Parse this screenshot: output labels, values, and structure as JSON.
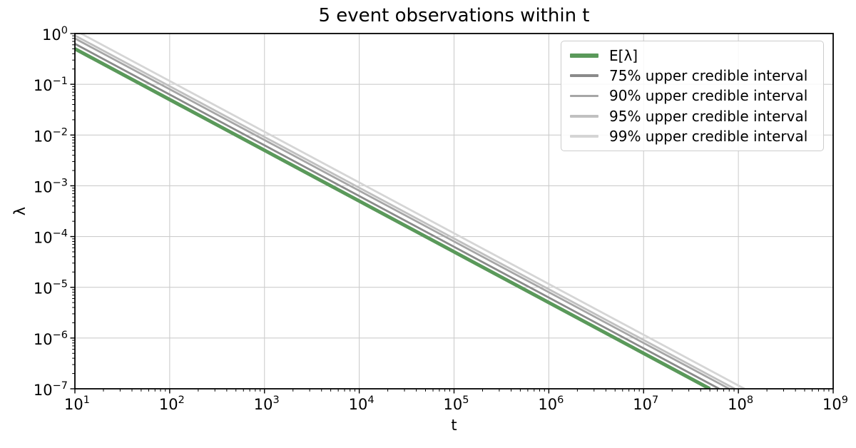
{
  "chart_data": {
    "type": "line",
    "title": "5 event observations within t",
    "xlabel": "t",
    "ylabel": "λ",
    "x_scale": "log",
    "y_scale": "log",
    "xlim": [
      10,
      1000000000
    ],
    "ylim": [
      1e-07,
      1
    ],
    "grid": true,
    "grid_color": "#cdcdcd",
    "legend_position": "upper right",
    "x_tick_exponents": [
      1,
      2,
      3,
      4,
      5,
      6,
      7,
      8,
      9
    ],
    "y_tick_exponents": [
      0,
      -1,
      -2,
      -3,
      -4,
      -5,
      -6,
      -7
    ],
    "series": [
      {
        "name": "E[λ]",
        "color": "#5a995a",
        "line_width": 5,
        "relation": "lambda = 5 / t",
        "coefficient": 5,
        "x": [
          10.0,
          100.0,
          1000.0,
          10000.0,
          100000.0,
          1000000.0,
          10000000.0,
          100000000.0,
          1000000000.0
        ],
        "y": [
          0.5,
          0.05,
          0.005,
          0.0005,
          5e-05,
          5e-06,
          5e-07,
          5e-08,
          5e-09
        ]
      },
      {
        "name": "75% upper credible interval",
        "color": "#8a8a8a",
        "line_width": 2.8,
        "relation": "lambda = 6.274 / t",
        "coefficient": 6.274,
        "x": [
          10.0,
          100.0,
          1000.0,
          10000.0,
          100000.0,
          1000000.0,
          10000000.0,
          100000000.0,
          1000000000.0
        ],
        "y": [
          0.6274,
          0.06274,
          0.006274,
          0.0006274,
          6.274e-05,
          6.274e-06,
          6.274e-07,
          6.274e-08,
          6.274e-09
        ]
      },
      {
        "name": "90% upper credible interval",
        "color": "#a6a6a6",
        "line_width": 2.8,
        "relation": "lambda = 7.994 / t",
        "coefficient": 7.994,
        "x": [
          10.0,
          100.0,
          1000.0,
          10000.0,
          100000.0,
          1000000.0,
          10000000.0,
          100000000.0,
          1000000000.0
        ],
        "y": [
          0.7994,
          0.07994,
          0.007994,
          0.0007994,
          7.994e-05,
          7.994e-06,
          7.994e-07,
          7.994e-08,
          7.994e-09
        ]
      },
      {
        "name": "95% upper credible interval",
        "color": "#c0c0c0",
        "line_width": 2.8,
        "relation": "lambda = 9.154 / t",
        "coefficient": 9.154,
        "x": [
          10.0,
          100.0,
          1000.0,
          10000.0,
          100000.0,
          1000000.0,
          10000000.0,
          100000000.0,
          1000000000.0
        ],
        "y": [
          0.9154,
          0.09154,
          0.009154,
          0.0009154,
          9.154e-05,
          9.154e-06,
          9.154e-07,
          9.154e-08,
          9.154e-09
        ]
      },
      {
        "name": "99% upper credible interval",
        "color": "#d5d5d5",
        "line_width": 2.8,
        "relation": "lambda = 11.605 / t",
        "coefficient": 11.605,
        "x": [
          10.0,
          100.0,
          1000.0,
          10000.0,
          100000.0,
          1000000.0,
          10000000.0,
          100000000.0,
          1000000000.0
        ],
        "y": [
          1.1605,
          0.11605,
          0.011605,
          0.0011605,
          0.00011605,
          1.1605e-05,
          1.1605e-06,
          1.1605e-07,
          1.1605e-08
        ]
      }
    ]
  }
}
